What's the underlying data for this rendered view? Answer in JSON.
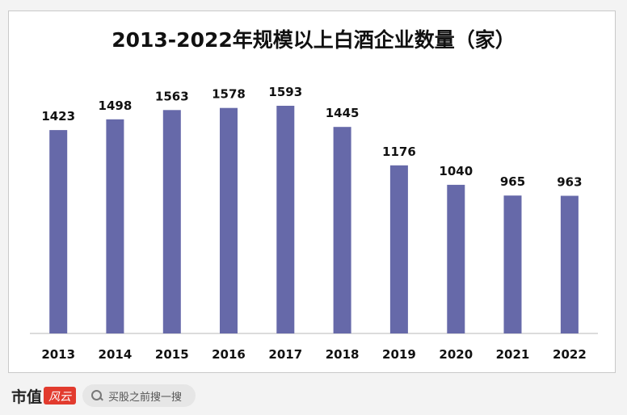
{
  "chart_data": {
    "type": "bar",
    "title": "2013-2022年规模以上白酒企业数量（家）",
    "categories": [
      "2013",
      "2014",
      "2015",
      "2016",
      "2017",
      "2018",
      "2019",
      "2020",
      "2021",
      "2022"
    ],
    "values": [
      1423,
      1498,
      1563,
      1578,
      1593,
      1445,
      1176,
      1040,
      965,
      963
    ],
    "value_labels": [
      "1423",
      "1498",
      "1563",
      "1578",
      "1593",
      "1445",
      "1176",
      "1040",
      "965",
      "963"
    ],
    "xlabel": "",
    "ylabel": "",
    "ylim": [
      0,
      1593
    ],
    "grid": false,
    "legend": "none",
    "bar_color": "#6669a9"
  },
  "footer": {
    "logo_text": "市值",
    "logo_badge_text": "风云",
    "search_placeholder": "买股之前搜一搜"
  },
  "colors": {
    "background": "#f3f3f3",
    "panel": "#ffffff",
    "logo_badge": "#e23b2e"
  }
}
